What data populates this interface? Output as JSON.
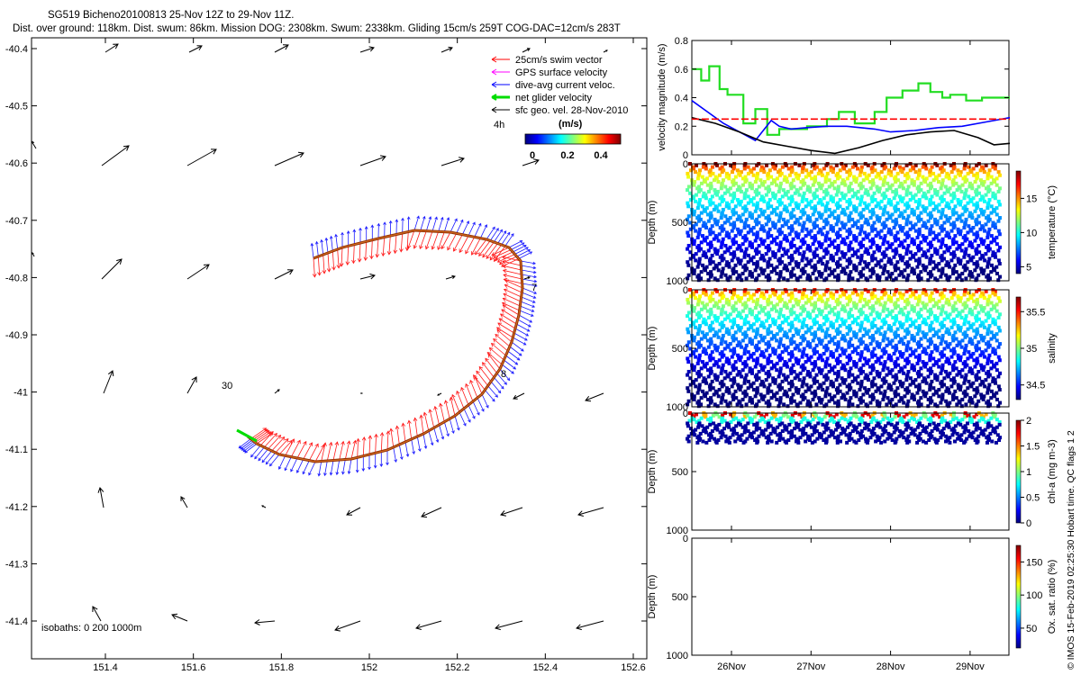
{
  "header": {
    "title_line1": "SG519 Bicheno20100813 25-Nov 12Z to 29-Nov 11Z.",
    "title_line2": "Dist. over ground: 118km. Dist. swum: 86km. Mission DOG: 2308km. Swum: 2338km. Gliding 15cm/s 259T COG-DAC=12cm/s 283T"
  },
  "map": {
    "x_ticks": [
      "151.4",
      "151.6",
      "151.8",
      "152",
      "152.2",
      "152.4",
      "152.6"
    ],
    "y_ticks": [
      "-40.4",
      "-40.5",
      "-40.6",
      "-40.7",
      "-40.8",
      "-40.9",
      "-41",
      "-41.1",
      "-41.2",
      "-41.3",
      "-41.4"
    ],
    "legend": [
      {
        "label": "25cm/s swim vector",
        "color": "#ff0000"
      },
      {
        "label": "GPS surface velocity",
        "color": "#ff00ff"
      },
      {
        "label": "dive-avg current veloc.",
        "color": "#0000ff"
      },
      {
        "label": "net glider velocity",
        "color": "#00dd00"
      },
      {
        "label": "sfc geo. vel. 28-Nov-2010",
        "color": "#000000"
      }
    ],
    "colorbar_label": "(m/s)",
    "colorbar_ticks": [
      "0",
      "0.2",
      "0.4"
    ],
    "time_label": "4h",
    "annotations": [
      "30",
      "7",
      "8"
    ],
    "isobaths_label": "isobaths: 0   200   1000m"
  },
  "chart_data": [
    {
      "type": "line",
      "ylabel": "velocity magnitude (m/s)",
      "ylim": [
        0,
        0.8
      ],
      "y_ticks": [
        "0",
        "0.2",
        "0.4",
        "0.6",
        "0.8"
      ],
      "x_ticks": [
        "26Nov",
        "27Nov",
        "28Nov",
        "29Nov"
      ],
      "series": [
        {
          "color": "#22dd22",
          "x": [
            25.5,
            25.62,
            25.62,
            25.72,
            25.72,
            25.85,
            25.85,
            25.95,
            25.95,
            26.15,
            26.15,
            26.3,
            26.3,
            26.45,
            26.45,
            26.6,
            26.6,
            26.95,
            26.95,
            27.2,
            27.2,
            27.35,
            27.35,
            27.55,
            27.55,
            27.8,
            27.8,
            27.95,
            27.95,
            28.15,
            28.15,
            28.35,
            28.35,
            28.5,
            28.5,
            28.65,
            28.65,
            28.75,
            28.75,
            28.95,
            28.95,
            29.15,
            29.15,
            29.5
          ],
          "y": [
            0.6,
            0.6,
            0.52,
            0.52,
            0.62,
            0.62,
            0.46,
            0.46,
            0.42,
            0.42,
            0.22,
            0.22,
            0.32,
            0.32,
            0.14,
            0.14,
            0.18,
            0.18,
            0.2,
            0.2,
            0.25,
            0.25,
            0.3,
            0.3,
            0.22,
            0.22,
            0.3,
            0.3,
            0.4,
            0.4,
            0.45,
            0.45,
            0.5,
            0.5,
            0.44,
            0.44,
            0.4,
            0.4,
            0.42,
            0.42,
            0.38,
            0.38,
            0.4,
            0.4
          ]
        },
        {
          "color": "#0000ff",
          "x": [
            25.5,
            25.7,
            25.9,
            26.1,
            26.3,
            26.5,
            26.6,
            26.75,
            26.95,
            27.2,
            27.45,
            27.8,
            28.0,
            28.3,
            28.6,
            28.9,
            29.2,
            29.5
          ],
          "y": [
            0.38,
            0.3,
            0.22,
            0.16,
            0.1,
            0.24,
            0.2,
            0.18,
            0.19,
            0.2,
            0.2,
            0.18,
            0.16,
            0.17,
            0.19,
            0.2,
            0.23,
            0.26
          ]
        },
        {
          "color": "#000000",
          "x": [
            25.5,
            25.8,
            26.1,
            26.4,
            26.7,
            27.0,
            27.3,
            27.6,
            27.9,
            28.2,
            28.5,
            28.8,
            29.1,
            29.3,
            29.5
          ],
          "y": [
            0.26,
            0.22,
            0.16,
            0.09,
            0.06,
            0.03,
            0.01,
            0.05,
            0.1,
            0.14,
            0.16,
            0.17,
            0.12,
            0.07,
            0.08
          ]
        },
        {
          "color": "#ff0000",
          "x": [
            25.5,
            29.5
          ],
          "y": [
            0.25,
            0.25
          ]
        }
      ]
    },
    {
      "type": "scatter",
      "ylabel": "Depth (m)",
      "ylim": [
        1000,
        0
      ],
      "y_ticks": [
        "0",
        "500",
        "1000"
      ],
      "colorbar_label": "temperature (°C)",
      "colorbar_range": [
        4,
        19
      ],
      "colorbar_ticks": [
        "5",
        "10",
        "15"
      ],
      "dives": 27,
      "max_depth": 1000
    },
    {
      "type": "scatter",
      "ylabel": "Depth (m)",
      "ylim": [
        1000,
        0
      ],
      "y_ticks": [
        "0",
        "500",
        "1000"
      ],
      "colorbar_label": "salinity",
      "colorbar_range": [
        34.3,
        35.7
      ],
      "colorbar_ticks": [
        "34.5",
        "35",
        "35.5"
      ],
      "dives": 27,
      "max_depth": 1000
    },
    {
      "type": "scatter",
      "ylabel": "Depth (m)",
      "ylim": [
        1000,
        0
      ],
      "y_ticks": [
        "0",
        "500",
        "1000"
      ],
      "colorbar_label": "chl-a (mg m-3)",
      "colorbar_range": [
        0,
        2
      ],
      "colorbar_ticks": [
        "0",
        "0.5",
        "1",
        "1.5",
        "2"
      ],
      "dives": 27,
      "max_depth": 250
    },
    {
      "type": "scatter",
      "ylabel": "Depth (m)",
      "ylim": [
        1000,
        0
      ],
      "y_ticks": [
        "0",
        "500",
        "1000"
      ],
      "colorbar_label": "Ox. sat. ratio (%)",
      "colorbar_range": [
        20,
        175
      ],
      "colorbar_ticks": [
        "50",
        "100",
        "150"
      ],
      "dives": 0,
      "max_depth": 0
    }
  ],
  "footer_note": "© IMOS 15-Feb-2019 02:25:30 Hobart time. QC flags 1  2"
}
